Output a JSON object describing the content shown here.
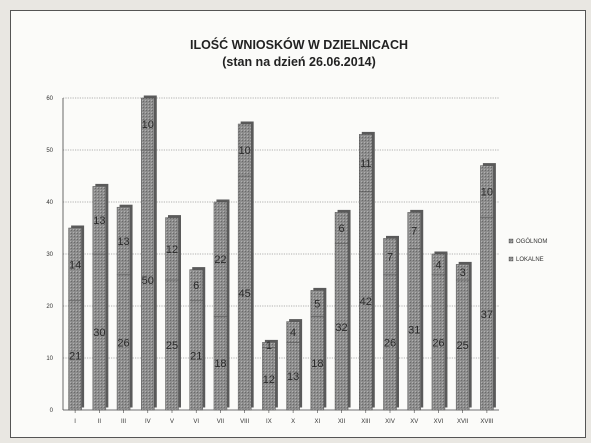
{
  "chart_data": {
    "type": "bar",
    "title": "ILOŚĆ WNIOSKÓW W DZIELNICACH",
    "subtitle": "(stan na dzień 26.06.2014)",
    "categories": [
      "I",
      "II",
      "III",
      "IV",
      "V",
      "VI",
      "VII",
      "VIII",
      "IX",
      "X",
      "XI",
      "XII",
      "XIII",
      "XIV",
      "XV",
      "XVI",
      "XVII",
      "XVIII"
    ],
    "stacked": true,
    "series": [
      {
        "name": "LOKALNE",
        "values": [
          21,
          30,
          26,
          50,
          25,
          21,
          18,
          45,
          12,
          13,
          18,
          32,
          42,
          26,
          31,
          26,
          25,
          37
        ]
      },
      {
        "name": "OGÓLNOM",
        "values": [
          14,
          13,
          13,
          10,
          12,
          6,
          22,
          10,
          1,
          4,
          5,
          6,
          11,
          7,
          7,
          4,
          3,
          10
        ]
      }
    ],
    "yticks": [
      0,
      10,
      20,
      30,
      40,
      50,
      60
    ],
    "ylim": [
      0,
      60
    ],
    "grid": true,
    "legend": "right",
    "colors": {
      "bar": "#8a8a8a",
      "bar_dark": "#555555",
      "grid": "#666666"
    }
  }
}
